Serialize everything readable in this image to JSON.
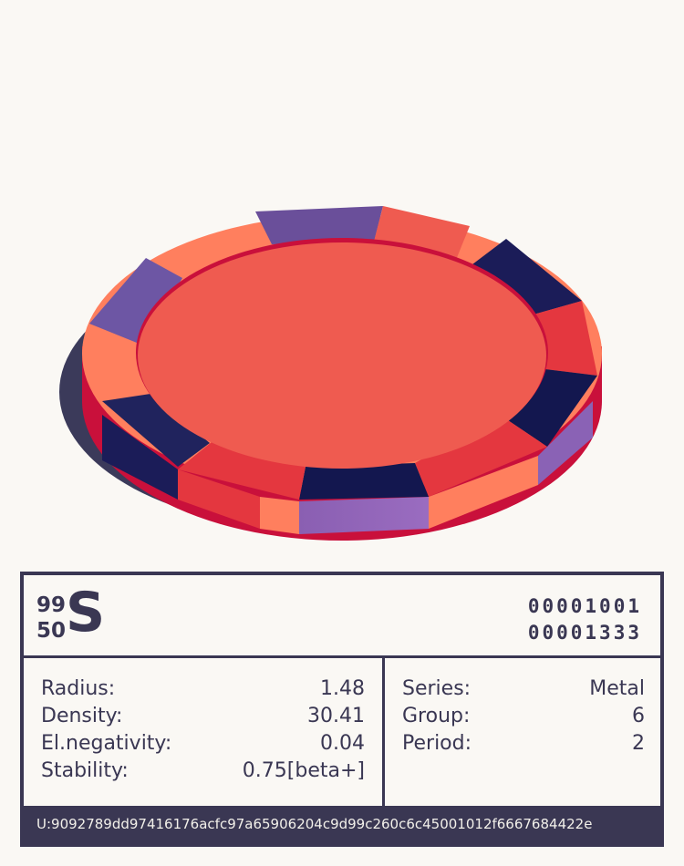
{
  "element": {
    "mass_number": "99",
    "atomic_number": "50",
    "symbol": "S",
    "code_line_1": "00001001",
    "code_line_2": "00001333"
  },
  "properties_left": [
    {
      "label": "Radius:",
      "value": "1.48"
    },
    {
      "label": "Density:",
      "value": "30.41"
    },
    {
      "label": "El.negativity:",
      "value": "0.04"
    },
    {
      "label": "Stability:",
      "value": "0.75[beta+]"
    }
  ],
  "properties_right": [
    {
      "label": "Series:",
      "value": "Metal"
    },
    {
      "label": "Group:",
      "value": "6"
    },
    {
      "label": "Period:",
      "value": "2"
    }
  ],
  "footer": {
    "uid": "U:9092789dd97416176acfc97a65906204c9d99c260c6c45001012f6667684422e"
  },
  "colors": {
    "ink": "#3a3753",
    "paper": "#faf8f4",
    "chip_face": "#ef5b50",
    "chip_rim_dark": "#c9103b",
    "segment_navy": "#13174f",
    "segment_purple": "#6a4f9a",
    "segment_orange": "#ff7f5e",
    "shadow": "#3b3a5a"
  }
}
